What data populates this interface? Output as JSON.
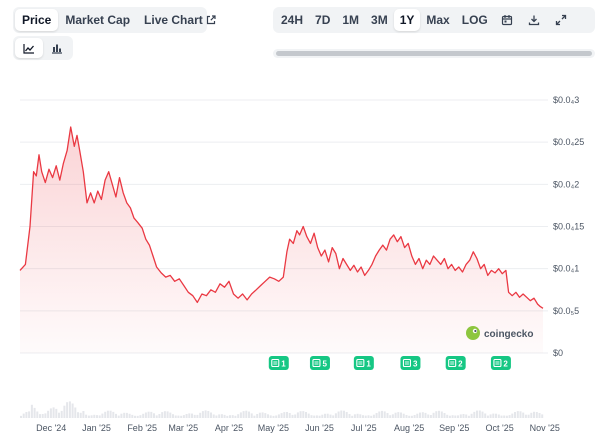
{
  "tabs": [
    {
      "label": "Price",
      "active": true
    },
    {
      "label": "Market Cap",
      "active": false
    },
    {
      "label": "Live Chart",
      "active": false
    }
  ],
  "ranges": [
    {
      "label": "24H",
      "active": false
    },
    {
      "label": "7D",
      "active": false
    },
    {
      "label": "1M",
      "active": false
    },
    {
      "label": "3M",
      "active": false
    },
    {
      "label": "1Y",
      "active": true
    },
    {
      "label": "Max",
      "active": false
    },
    {
      "label": "LOG",
      "active": false
    }
  ],
  "toolbar_icons": [
    "calendar-icon",
    "download-icon",
    "expand-icon"
  ],
  "chart_types": [
    {
      "icon": "line-chart-icon",
      "active": true
    },
    {
      "icon": "bar-chart-icon",
      "active": false
    }
  ],
  "watermark": "coingecko",
  "colors": {
    "line": "#ea3943",
    "event": "#16c784"
  },
  "chart_data": {
    "type": "area",
    "y_ticks": [
      {
        "value": 3e-05,
        "label": "$0.0₄3"
      },
      {
        "value": 2.5e-05,
        "label": "$0.0₄25"
      },
      {
        "value": 2e-05,
        "label": "$0.0₄2"
      },
      {
        "value": 1.5e-05,
        "label": "$0.0₄15"
      },
      {
        "value": 1e-05,
        "label": "$0.0₄1"
      },
      {
        "value": 5e-06,
        "label": "$0.0₅5"
      },
      {
        "value": 0,
        "label": "$0"
      }
    ],
    "ylim": [
      0,
      3e-05
    ],
    "x_ticks": [
      "Dec '24",
      "Jan '25",
      "Feb '25",
      "Mar '25",
      "Apr '25",
      "May '25",
      "Jun '25",
      "Jul '25",
      "Aug '25",
      "Sep '25",
      "Oct '25",
      "Nov '25"
    ],
    "x_tick_pos": [
      0.69,
      1.69,
      2.7,
      3.61,
      4.62,
      5.6,
      6.62,
      7.6,
      8.6,
      9.6,
      10.6,
      11.6
    ],
    "grid": true,
    "series": [
      {
        "values": [
          [
            0.0,
            9.8e-06
          ],
          [
            0.12,
            1.05e-05
          ],
          [
            0.22,
            1.5e-05
          ],
          [
            0.3,
            2.15e-05
          ],
          [
            0.36,
            2.1e-05
          ],
          [
            0.42,
            2.35e-05
          ],
          [
            0.48,
            2.15e-05
          ],
          [
            0.56,
            2.02e-05
          ],
          [
            0.64,
            2.18e-05
          ],
          [
            0.72,
            2.08e-05
          ],
          [
            0.8,
            2.22e-05
          ],
          [
            0.88,
            2.05e-05
          ],
          [
            0.96,
            2.25e-05
          ],
          [
            1.04,
            2.4e-05
          ],
          [
            1.12,
            2.68e-05
          ],
          [
            1.2,
            2.45e-05
          ],
          [
            1.26,
            2.58e-05
          ],
          [
            1.32,
            2.4e-05
          ],
          [
            1.4,
            2.15e-05
          ],
          [
            1.48,
            1.78e-05
          ],
          [
            1.56,
            1.9e-05
          ],
          [
            1.64,
            1.78e-05
          ],
          [
            1.72,
            1.92e-05
          ],
          [
            1.8,
            1.82e-05
          ],
          [
            1.88,
            2.05e-05
          ],
          [
            1.96,
            2.15e-05
          ],
          [
            2.04,
            2e-05
          ],
          [
            2.12,
            1.85e-05
          ],
          [
            2.2,
            2.08e-05
          ],
          [
            2.28,
            1.9e-05
          ],
          [
            2.36,
            1.78e-05
          ],
          [
            2.44,
            1.72e-05
          ],
          [
            2.52,
            1.6e-05
          ],
          [
            2.6,
            1.55e-05
          ],
          [
            2.7,
            1.48e-05
          ],
          [
            2.78,
            1.35e-05
          ],
          [
            2.86,
            1.28e-05
          ],
          [
            2.94,
            1.15e-05
          ],
          [
            3.02,
            1.02e-05
          ],
          [
            3.12,
            9.5e-06
          ],
          [
            3.22,
            9e-06
          ],
          [
            3.32,
            9.2e-06
          ],
          [
            3.42,
            8.5e-06
          ],
          [
            3.52,
            8.8e-06
          ],
          [
            3.62,
            8e-06
          ],
          [
            3.72,
            7.2e-06
          ],
          [
            3.82,
            6.8e-06
          ],
          [
            3.92,
            6e-06
          ],
          [
            4.02,
            7e-06
          ],
          [
            4.12,
            6.8e-06
          ],
          [
            4.22,
            7.5e-06
          ],
          [
            4.32,
            7.2e-06
          ],
          [
            4.42,
            8.2e-06
          ],
          [
            4.52,
            7.8e-06
          ],
          [
            4.62,
            8.5e-06
          ],
          [
            4.72,
            7e-06
          ],
          [
            4.82,
            6.5e-06
          ],
          [
            4.92,
            7e-06
          ],
          [
            5.02,
            6.3e-06
          ],
          [
            5.12,
            7e-06
          ],
          [
            5.22,
            7.5e-06
          ],
          [
            5.32,
            8e-06
          ],
          [
            5.42,
            8.5e-06
          ],
          [
            5.52,
            9e-06
          ],
          [
            5.62,
            8.8e-06
          ],
          [
            5.72,
            8.5e-06
          ],
          [
            5.82,
            9e-06
          ],
          [
            5.9,
            1.2e-05
          ],
          [
            5.96,
            1.35e-05
          ],
          [
            6.04,
            1.3e-05
          ],
          [
            6.12,
            1.45e-05
          ],
          [
            6.18,
            1.4e-05
          ],
          [
            6.26,
            1.5e-05
          ],
          [
            6.34,
            1.38e-05
          ],
          [
            6.42,
            1.3e-05
          ],
          [
            6.5,
            1.42e-05
          ],
          [
            6.58,
            1.25e-05
          ],
          [
            6.66,
            1.15e-05
          ],
          [
            6.74,
            1.22e-05
          ],
          [
            6.82,
            1.08e-05
          ],
          [
            6.9,
            1.25e-05
          ],
          [
            6.98,
            1.18e-05
          ],
          [
            7.06,
            1e-05
          ],
          [
            7.14,
            1.12e-05
          ],
          [
            7.22,
            1.05e-05
          ],
          [
            7.3,
            9.8e-06
          ],
          [
            7.38,
            1.04e-05
          ],
          [
            7.46,
            9.6e-06
          ],
          [
            7.54,
            1.02e-05
          ],
          [
            7.62,
            9.2e-06
          ],
          [
            7.7,
            9.8e-06
          ],
          [
            7.78,
            1.05e-05
          ],
          [
            7.86,
            1.15e-05
          ],
          [
            7.94,
            1.22e-05
          ],
          [
            8.02,
            1.28e-05
          ],
          [
            8.1,
            1.22e-05
          ],
          [
            8.18,
            1.35e-05
          ],
          [
            8.26,
            1.4e-05
          ],
          [
            8.34,
            1.32e-05
          ],
          [
            8.42,
            1.38e-05
          ],
          [
            8.5,
            1.25e-05
          ],
          [
            8.58,
            1.3e-05
          ],
          [
            8.66,
            1.15e-05
          ],
          [
            8.74,
            1.05e-05
          ],
          [
            8.82,
            1.12e-05
          ],
          [
            8.9,
            1e-05
          ],
          [
            8.98,
            1.1e-05
          ],
          [
            9.06,
            1.05e-05
          ],
          [
            9.14,
            1.15e-05
          ],
          [
            9.22,
            1.1e-05
          ],
          [
            9.3,
            1.05e-05
          ],
          [
            9.38,
            1.12e-05
          ],
          [
            9.46,
            1e-05
          ],
          [
            9.54,
            1.05e-05
          ],
          [
            9.62,
            9.8e-06
          ],
          [
            9.7,
            1.02e-05
          ],
          [
            9.78,
            9.6e-06
          ],
          [
            9.86,
            1.05e-05
          ],
          [
            9.94,
            1.1e-05
          ],
          [
            10.02,
            1.2e-05
          ],
          [
            10.1,
            1.12e-05
          ],
          [
            10.18,
            1e-05
          ],
          [
            10.26,
            1.05e-05
          ],
          [
            10.34,
            9.2e-06
          ],
          [
            10.42,
            9.8e-06
          ],
          [
            10.5,
            9.5e-06
          ],
          [
            10.58,
            1e-05
          ],
          [
            10.66,
            9.4e-06
          ],
          [
            10.74,
            9.8e-06
          ],
          [
            10.8,
            7.2e-06
          ],
          [
            10.88,
            6.8e-06
          ],
          [
            10.96,
            7.2e-06
          ],
          [
            11.04,
            6.6e-06
          ],
          [
            11.12,
            7e-06
          ],
          [
            11.2,
            6.6e-06
          ],
          [
            11.28,
            6.2e-06
          ],
          [
            11.36,
            6.5e-06
          ],
          [
            11.44,
            5.8e-06
          ],
          [
            11.5,
            5.5e-06
          ],
          [
            11.56,
            5.3e-06
          ]
        ]
      }
    ],
    "events": [
      {
        "x": 5.72,
        "count": "1"
      },
      {
        "x": 6.63,
        "count": "5"
      },
      {
        "x": 7.6,
        "count": "1"
      },
      {
        "x": 8.63,
        "count": "3"
      },
      {
        "x": 9.63,
        "count": "2"
      },
      {
        "x": 10.63,
        "count": "2"
      }
    ]
  }
}
